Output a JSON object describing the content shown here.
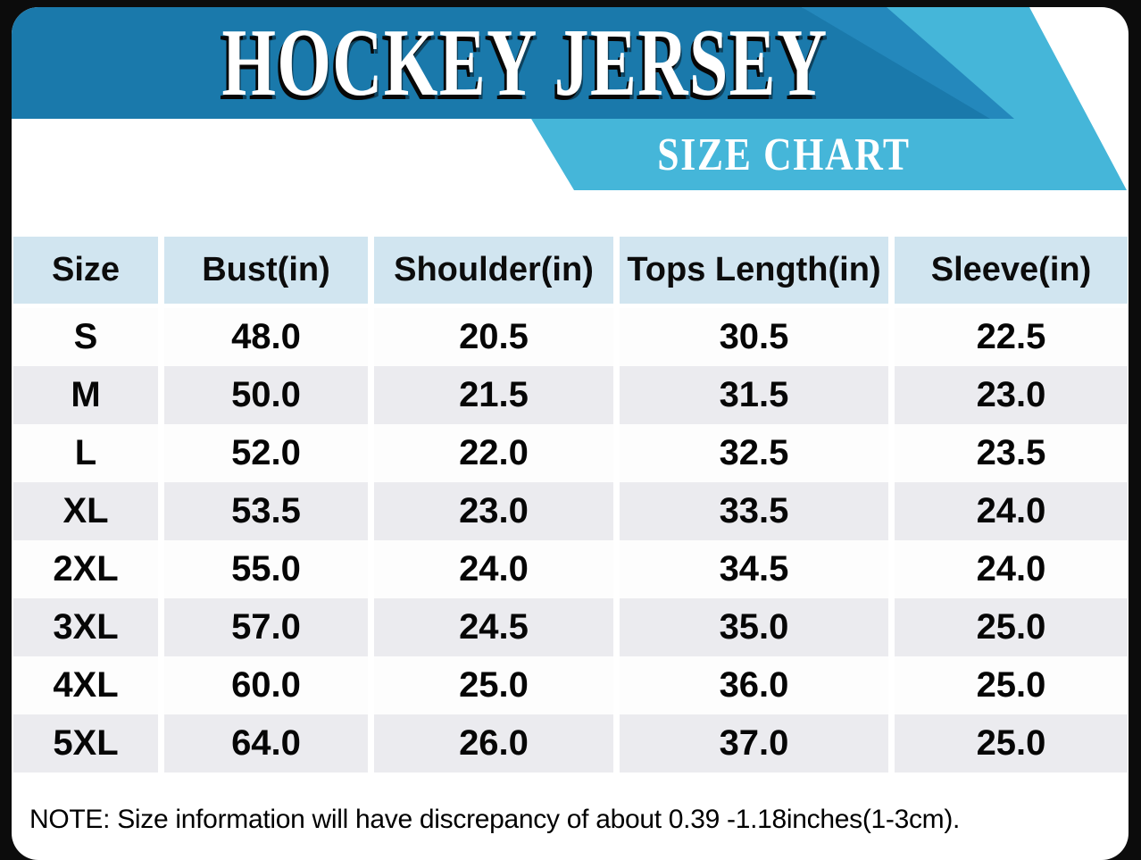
{
  "banner": {
    "title": "HOCKEY JERSEY",
    "subtitle": "SIZE CHART",
    "colors": {
      "dark_blue": "#1a79ab",
      "medium_blue": "#2488bc",
      "light_blue": "#45b6d9"
    }
  },
  "table": {
    "headers": [
      "Size",
      "Bust(in)",
      "Shoulder(in)",
      "Tops Length(in)",
      "Sleeve(in)"
    ],
    "header_bg": "#d1e5f0",
    "rows": [
      {
        "size": "S",
        "bust": "48.0",
        "shoulder": "20.5",
        "tops_length": "30.5",
        "sleeve": "22.5"
      },
      {
        "size": "M",
        "bust": "50.0",
        "shoulder": "21.5",
        "tops_length": "31.5",
        "sleeve": "23.0"
      },
      {
        "size": "L",
        "bust": "52.0",
        "shoulder": "22.0",
        "tops_length": "32.5",
        "sleeve": "23.5"
      },
      {
        "size": "XL",
        "bust": "53.5",
        "shoulder": "23.0",
        "tops_length": "33.5",
        "sleeve": "24.0"
      },
      {
        "size": "2XL",
        "bust": "55.0",
        "shoulder": "24.0",
        "tops_length": "34.5",
        "sleeve": "24.0"
      },
      {
        "size": "3XL",
        "bust": "57.0",
        "shoulder": "24.5",
        "tops_length": "35.0",
        "sleeve": "25.0"
      },
      {
        "size": "4XL",
        "bust": "60.0",
        "shoulder": "25.0",
        "tops_length": "36.0",
        "sleeve": "25.0"
      },
      {
        "size": "5XL",
        "bust": "64.0",
        "shoulder": "26.0",
        "tops_length": "37.0",
        "sleeve": "25.0"
      }
    ]
  },
  "note": "NOTE: Size information will have discrepancy of about 0.39 -1.18inches(1-3cm).",
  "chart_data": {
    "type": "table",
    "title": "HOCKEY JERSEY SIZE CHART",
    "columns": [
      "Size",
      "Bust(in)",
      "Shoulder(in)",
      "Tops Length(in)",
      "Sleeve(in)"
    ],
    "rows": [
      [
        "S",
        48.0,
        20.5,
        30.5,
        22.5
      ],
      [
        "M",
        50.0,
        21.5,
        31.5,
        23.0
      ],
      [
        "L",
        52.0,
        22.0,
        32.5,
        23.5
      ],
      [
        "XL",
        53.5,
        23.0,
        33.5,
        24.0
      ],
      [
        "2XL",
        55.0,
        24.0,
        34.5,
        24.0
      ],
      [
        "3XL",
        57.0,
        24.5,
        35.0,
        25.0
      ],
      [
        "4XL",
        60.0,
        25.0,
        36.0,
        25.0
      ],
      [
        "5XL",
        64.0,
        26.0,
        37.0,
        25.0
      ]
    ],
    "units": "inches",
    "footnote": "NOTE: Size information will have discrepancy of about 0.39 -1.18inches(1-3cm)."
  }
}
